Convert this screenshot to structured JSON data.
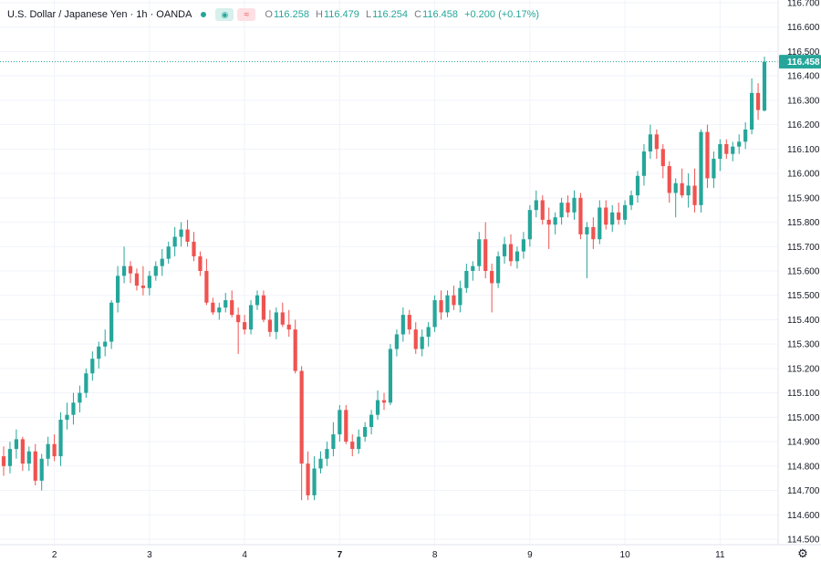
{
  "legend": {
    "symbol": "U.S. Dollar / Japanese Yen",
    "interval": "1h",
    "exchange": "OANDA",
    "o_label": "O",
    "o": "116.258",
    "h_label": "H",
    "h": "116.479",
    "l_label": "L",
    "l": "116.254",
    "c_label": "C",
    "c": "116.458",
    "change": "+0.200 (+0.17%)",
    "eye_icon": "eye-icon",
    "wave_icon": "wave-icon"
  },
  "colors": {
    "up": "#26a69a",
    "down": "#ef5350",
    "price_line": "#26a69a",
    "grid": "#f0f3fa"
  },
  "chart_data": {
    "type": "candlestick",
    "symbol": "U.S. Dollar / Japanese Yen · 1h · OANDA",
    "ylim": [
      114.5,
      116.7
    ],
    "y_ticks": [
      "114.500",
      "114.600",
      "114.700",
      "114.800",
      "114.900",
      "115.000",
      "115.100",
      "115.200",
      "115.300",
      "115.400",
      "115.500",
      "115.600",
      "115.700",
      "115.800",
      "115.900",
      "116.000",
      "116.100",
      "116.200",
      "116.300",
      "116.400",
      "116.500",
      "116.600",
      "116.700"
    ],
    "x_ticks": [
      {
        "label": "2",
        "bar": 8,
        "bold": false
      },
      {
        "label": "3",
        "bar": 23,
        "bold": false
      },
      {
        "label": "4",
        "bar": 38,
        "bold": false
      },
      {
        "label": "7",
        "bar": 53,
        "bold": true
      },
      {
        "label": "8",
        "bar": 68,
        "bold": false
      },
      {
        "label": "9",
        "bar": 83,
        "bold": false
      },
      {
        "label": "10",
        "bar": 98,
        "bold": false
      },
      {
        "label": "11",
        "bar": 113,
        "bold": false
      }
    ],
    "last_price": "116.458",
    "grid": true,
    "ohlc": [
      [
        114.84,
        114.88,
        114.76,
        114.8
      ],
      [
        114.8,
        114.9,
        114.77,
        114.87
      ],
      [
        114.87,
        114.95,
        114.83,
        114.91
      ],
      [
        114.91,
        114.92,
        114.78,
        114.81
      ],
      [
        114.81,
        114.88,
        114.78,
        114.86
      ],
      [
        114.86,
        114.89,
        114.72,
        114.74
      ],
      [
        114.74,
        114.85,
        114.7,
        114.83
      ],
      [
        114.83,
        114.92,
        114.8,
        114.89
      ],
      [
        114.89,
        114.93,
        114.82,
        114.84
      ],
      [
        114.84,
        115.02,
        114.8,
        114.99
      ],
      [
        114.99,
        115.06,
        114.95,
        115.01
      ],
      [
        115.01,
        115.1,
        114.97,
        115.06
      ],
      [
        115.06,
        115.13,
        115.02,
        115.1
      ],
      [
        115.1,
        115.2,
        115.08,
        115.18
      ],
      [
        115.18,
        115.27,
        115.15,
        115.24
      ],
      [
        115.24,
        115.31,
        115.2,
        115.29
      ],
      [
        115.29,
        115.36,
        115.25,
        115.31
      ],
      [
        115.31,
        115.48,
        115.28,
        115.47
      ],
      [
        115.47,
        115.62,
        115.43,
        115.58
      ],
      [
        115.58,
        115.7,
        115.55,
        115.62
      ],
      [
        115.62,
        115.64,
        115.55,
        115.59
      ],
      [
        115.59,
        115.61,
        115.52,
        115.54
      ],
      [
        115.54,
        115.62,
        115.5,
        115.53
      ],
      [
        115.53,
        115.6,
        115.5,
        115.58
      ],
      [
        115.58,
        115.64,
        115.56,
        115.62
      ],
      [
        115.62,
        115.69,
        115.58,
        115.65
      ],
      [
        115.65,
        115.72,
        115.63,
        115.7
      ],
      [
        115.7,
        115.78,
        115.66,
        115.74
      ],
      [
        115.74,
        115.8,
        115.7,
        115.77
      ],
      [
        115.77,
        115.81,
        115.7,
        115.72
      ],
      [
        115.72,
        115.76,
        115.64,
        115.66
      ],
      [
        115.66,
        115.68,
        115.58,
        115.6
      ],
      [
        115.6,
        115.65,
        115.46,
        115.47
      ],
      [
        115.47,
        115.49,
        115.42,
        115.43
      ],
      [
        115.43,
        115.47,
        115.4,
        115.45
      ],
      [
        115.45,
        115.51,
        115.43,
        115.48
      ],
      [
        115.48,
        115.52,
        115.41,
        115.42
      ],
      [
        115.42,
        115.45,
        115.26,
        115.39
      ],
      [
        115.39,
        115.42,
        115.34,
        115.36
      ],
      [
        115.36,
        115.48,
        115.34,
        115.46
      ],
      [
        115.46,
        115.52,
        115.44,
        115.5
      ],
      [
        115.5,
        115.52,
        115.39,
        115.4
      ],
      [
        115.4,
        115.44,
        115.33,
        115.35
      ],
      [
        115.35,
        115.45,
        115.32,
        115.43
      ],
      [
        115.43,
        115.47,
        115.37,
        115.38
      ],
      [
        115.38,
        115.44,
        115.33,
        115.36
      ],
      [
        115.36,
        115.4,
        115.18,
        115.19
      ],
      [
        115.19,
        115.21,
        114.66,
        114.81
      ],
      [
        114.81,
        114.86,
        114.66,
        114.68
      ],
      [
        114.68,
        114.84,
        114.66,
        114.79
      ],
      [
        114.79,
        114.86,
        114.77,
        114.83
      ],
      [
        114.83,
        114.9,
        114.8,
        114.87
      ],
      [
        114.87,
        114.98,
        114.84,
        114.93
      ],
      [
        114.93,
        115.05,
        114.9,
        115.03
      ],
      [
        115.03,
        115.05,
        114.89,
        114.9
      ],
      [
        114.9,
        114.93,
        114.84,
        114.87
      ],
      [
        114.87,
        114.95,
        114.85,
        114.92
      ],
      [
        114.92,
        114.98,
        114.9,
        114.96
      ],
      [
        114.96,
        115.03,
        114.93,
        115.01
      ],
      [
        115.01,
        115.11,
        114.99,
        115.07
      ],
      [
        115.07,
        115.1,
        115.03,
        115.06
      ],
      [
        115.06,
        115.3,
        115.05,
        115.28
      ],
      [
        115.28,
        115.36,
        115.25,
        115.34
      ],
      [
        115.34,
        115.45,
        115.31,
        115.42
      ],
      [
        115.42,
        115.44,
        115.34,
        115.36
      ],
      [
        115.36,
        115.39,
        115.26,
        115.28
      ],
      [
        115.28,
        115.36,
        115.25,
        115.33
      ],
      [
        115.33,
        115.39,
        115.29,
        115.37
      ],
      [
        115.37,
        115.5,
        115.35,
        115.48
      ],
      [
        115.48,
        115.52,
        115.4,
        115.43
      ],
      [
        115.43,
        115.52,
        115.41,
        115.5
      ],
      [
        115.5,
        115.54,
        115.44,
        115.46
      ],
      [
        115.46,
        115.56,
        115.43,
        115.53
      ],
      [
        115.53,
        115.63,
        115.51,
        115.6
      ],
      [
        115.6,
        115.64,
        115.56,
        115.62
      ],
      [
        115.62,
        115.76,
        115.6,
        115.73
      ],
      [
        115.73,
        115.8,
        115.57,
        115.6
      ],
      [
        115.6,
        115.63,
        115.43,
        115.55
      ],
      [
        115.55,
        115.68,
        115.53,
        115.66
      ],
      [
        115.66,
        115.74,
        115.63,
        115.71
      ],
      [
        115.71,
        115.75,
        115.62,
        115.64
      ],
      [
        115.64,
        115.7,
        115.61,
        115.68
      ],
      [
        115.68,
        115.76,
        115.65,
        115.73
      ],
      [
        115.73,
        115.87,
        115.7,
        115.85
      ],
      [
        115.85,
        115.93,
        115.82,
        115.89
      ],
      [
        115.89,
        115.91,
        115.79,
        115.81
      ],
      [
        115.81,
        115.86,
        115.69,
        115.79
      ],
      [
        115.79,
        115.84,
        115.75,
        115.82
      ],
      [
        115.82,
        115.9,
        115.79,
        115.88
      ],
      [
        115.88,
        115.91,
        115.82,
        115.84
      ],
      [
        115.84,
        115.93,
        115.81,
        115.9
      ],
      [
        115.9,
        115.92,
        115.73,
        115.75
      ],
      [
        115.75,
        115.8,
        115.57,
        115.78
      ],
      [
        115.78,
        115.82,
        115.69,
        115.73
      ],
      [
        115.73,
        115.89,
        115.71,
        115.86
      ],
      [
        115.86,
        115.89,
        115.77,
        115.79
      ],
      [
        115.79,
        115.87,
        115.76,
        115.84
      ],
      [
        115.84,
        115.88,
        115.79,
        115.81
      ],
      [
        115.81,
        115.89,
        115.79,
        115.87
      ],
      [
        115.87,
        115.93,
        115.85,
        115.91
      ],
      [
        115.91,
        116.01,
        115.88,
        115.99
      ],
      [
        115.99,
        116.12,
        115.95,
        116.09
      ],
      [
        116.09,
        116.2,
        116.06,
        116.16
      ],
      [
        116.16,
        116.18,
        116.06,
        116.1
      ],
      [
        116.1,
        116.12,
        115.98,
        116.03
      ],
      [
        116.03,
        116.05,
        115.88,
        115.92
      ],
      [
        115.92,
        115.98,
        115.82,
        115.96
      ],
      [
        115.96,
        116.02,
        115.9,
        115.91
      ],
      [
        115.91,
        116.0,
        115.86,
        115.95
      ],
      [
        115.95,
        116.02,
        115.84,
        115.87
      ],
      [
        115.87,
        116.18,
        115.84,
        116.17
      ],
      [
        116.17,
        116.2,
        115.94,
        115.98
      ],
      [
        115.98,
        116.09,
        115.94,
        116.06
      ],
      [
        116.06,
        116.14,
        116.01,
        116.12
      ],
      [
        116.12,
        116.14,
        116.06,
        116.08
      ],
      [
        116.08,
        116.13,
        116.05,
        116.11
      ],
      [
        116.11,
        116.16,
        116.08,
        116.13
      ],
      [
        116.13,
        116.21,
        116.1,
        116.18
      ],
      [
        116.18,
        116.39,
        116.16,
        116.33
      ],
      [
        116.33,
        116.37,
        116.22,
        116.26
      ],
      [
        116.258,
        116.479,
        116.254,
        116.458
      ]
    ]
  }
}
